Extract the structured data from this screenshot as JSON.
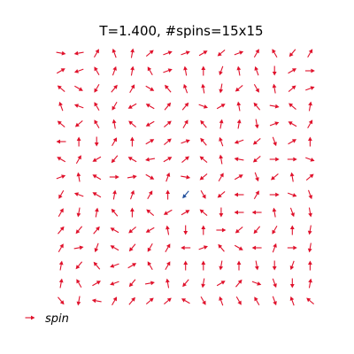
{
  "chart_data": {
    "type": "scatter",
    "subtype": "quiver",
    "title": "T=1.400, #spins=15x15",
    "xlabel": "",
    "ylabel": "",
    "axes_visible": false,
    "grid": false,
    "lattice": {
      "rows": 15,
      "cols": 15
    },
    "legend": {
      "label": "spin",
      "placement": "lower-left"
    },
    "colors": {
      "spin": "#e0112b",
      "highlight": "#1f4e9c"
    },
    "highlight": {
      "row": 8,
      "col": 7
    },
    "angles_deg": [
      [
        350,
        190,
        60,
        110,
        80,
        40,
        20,
        20,
        30,
        220,
        20,
        60,
        120,
        230,
        60
      ],
      [
        30,
        200,
        120,
        70,
        80,
        120,
        20,
        100,
        90,
        250,
        100,
        110,
        270,
        30,
        0
      ],
      [
        140,
        330,
        240,
        50,
        60,
        330,
        130,
        110,
        100,
        260,
        220,
        300,
        100,
        40,
        20
      ],
      [
        110,
        160,
        120,
        240,
        210,
        150,
        50,
        50,
        340,
        30,
        100,
        130,
        350,
        140,
        80
      ],
      [
        140,
        220,
        120,
        100,
        140,
        210,
        40,
        60,
        130,
        80,
        80,
        280,
        20,
        150,
        60
      ],
      [
        180,
        90,
        270,
        60,
        90,
        30,
        40,
        20,
        130,
        110,
        200,
        220,
        290,
        30,
        90
      ],
      [
        150,
        60,
        210,
        230,
        150,
        190,
        30,
        40,
        140,
        100,
        170,
        220,
        0,
        0,
        340
      ],
      [
        20,
        100,
        150,
        0,
        10,
        330,
        70,
        350,
        220,
        60,
        30,
        290,
        220,
        100,
        40
      ],
      [
        240,
        160,
        150,
        80,
        70,
        60,
        90,
        230,
        300,
        220,
        180,
        60,
        0,
        340,
        290
      ],
      [
        60,
        260,
        80,
        130,
        90,
        140,
        210,
        30,
        140,
        270,
        180,
        180,
        100,
        290,
        280
      ],
      [
        50,
        230,
        50,
        150,
        220,
        210,
        100,
        270,
        90,
        0,
        220,
        230,
        240,
        90,
        260
      ],
      [
        60,
        10,
        250,
        150,
        230,
        240,
        60,
        180,
        20,
        130,
        330,
        180,
        70,
        0,
        260
      ],
      [
        80,
        230,
        130,
        200,
        30,
        120,
        60,
        90,
        90,
        260,
        90,
        280,
        270,
        250,
        90
      ],
      [
        80,
        120,
        30,
        200,
        230,
        10,
        100,
        230,
        260,
        30,
        50,
        340,
        290,
        270,
        80
      ],
      [
        310,
        260,
        170,
        60,
        50,
        40,
        40,
        150,
        300,
        110,
        300,
        120,
        290,
        110,
        140
      ]
    ]
  }
}
